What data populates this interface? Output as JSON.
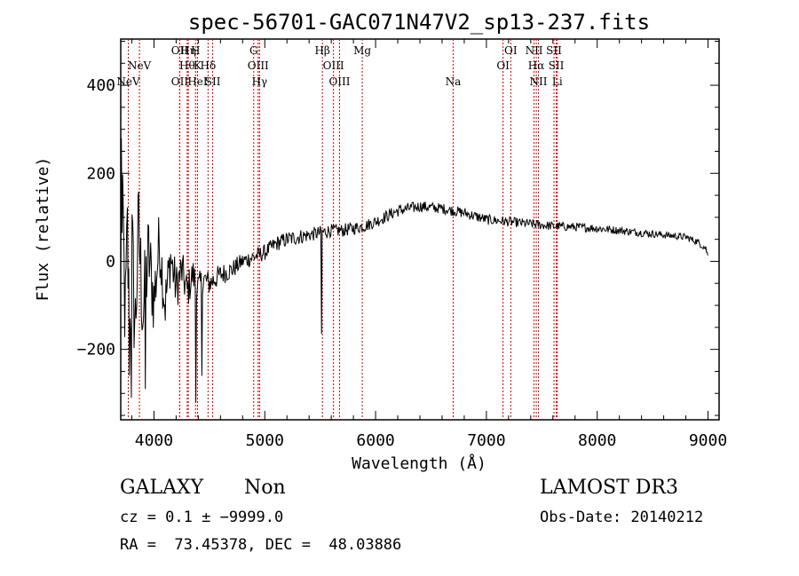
{
  "chart_data": {
    "type": "line",
    "title": "spec-56701-GAC071N47V2_sp13-237.fits",
    "xlabel": "Wavelength (Å)",
    "ylabel": "Flux (relative)",
    "xlim": [
      3700,
      9100
    ],
    "ylim": [
      -360,
      505
    ],
    "xticks": [
      4000,
      5000,
      6000,
      7000,
      8000,
      9000
    ],
    "yticks": [
      -200,
      0,
      200,
      400
    ],
    "xtick_labels": [
      "4000",
      "5000",
      "6000",
      "7000",
      "8000",
      "9000"
    ],
    "ytick_labels": [
      "−200",
      "0",
      "200",
      "400"
    ],
    "series": [
      {
        "name": "flux",
        "x": [
          3700,
          3720,
          3740,
          3760,
          3780,
          3800,
          3830,
          3860,
          3900,
          3950,
          4000,
          4050,
          4100,
          4150,
          4200,
          4250,
          4300,
          4350,
          4400,
          4450,
          4500,
          4600,
          4700,
          4800,
          4900,
          5000,
          5100,
          5200,
          5300,
          5400,
          5500,
          5600,
          5700,
          5800,
          5900,
          6000,
          6200,
          6400,
          6600,
          6800,
          7000,
          7200,
          7400,
          7600,
          7800,
          8000,
          8200,
          8400,
          8600,
          8800,
          8900,
          8980,
          9000
        ],
        "y": [
          -80,
          120,
          -150,
          60,
          -200,
          40,
          -160,
          80,
          -120,
          20,
          -90,
          50,
          -100,
          10,
          -60,
          -20,
          -70,
          -30,
          -60,
          -40,
          -50,
          -30,
          -20,
          0,
          10,
          20,
          40,
          50,
          55,
          60,
          65,
          70,
          70,
          75,
          80,
          90,
          115,
          125,
          120,
          110,
          95,
          90,
          85,
          80,
          78,
          75,
          70,
          65,
          60,
          55,
          45,
          30,
          10
        ],
        "noise": [
          80,
          100,
          120,
          130,
          140,
          140,
          130,
          120,
          110,
          100,
          90,
          80,
          70,
          60,
          55,
          50,
          45,
          40,
          35,
          30,
          28,
          25,
          22,
          20,
          20,
          18,
          18,
          18,
          18,
          16,
          16,
          15,
          15,
          15,
          14,
          14,
          14,
          13,
          12,
          12,
          12,
          11,
          11,
          10,
          10,
          10,
          9,
          9,
          8,
          8,
          8,
          8,
          8
        ],
        "spikes": [
          {
            "x": 3705,
            "y": 280
          },
          {
            "x": 3795,
            "y": -310
          },
          {
            "x": 3920,
            "y": -290
          },
          {
            "x": 4380,
            "y": -320
          },
          {
            "x": 4430,
            "y": -260
          },
          {
            "x": 5510,
            "y": -165
          }
        ]
      }
    ],
    "lines": [
      {
        "x": 3768,
        "label": "NeV",
        "row": 3
      },
      {
        "x": 3869,
        "label": "NeV",
        "row": 1
      },
      {
        "x": 4232,
        "label": "OII",
        "row": 0
      },
      {
        "x": 4232,
        "label": "OII",
        "row": 3
      },
      {
        "x": 4300,
        "label": "Hθ",
        "row": 1
      },
      {
        "x": 4310,
        "label": "Hη",
        "row": 0
      },
      {
        "x": 4375,
        "label": "H",
        "row": 0
      },
      {
        "x": 4393,
        "label": "K",
        "row": 1
      },
      {
        "x": 4393,
        "label": "HeI",
        "row": 3
      },
      {
        "x": 4488,
        "label": "Hδ",
        "row": 1
      },
      {
        "x": 4530,
        "label": "SII",
        "row": 3
      },
      {
        "x": 4900,
        "label": "G",
        "row": 0
      },
      {
        "x": 4940,
        "label": "OIII",
        "row": 1
      },
      {
        "x": 4953,
        "label": "Hγ",
        "row": 3
      },
      {
        "x": 5520,
        "label": "Hβ",
        "row": 0
      },
      {
        "x": 5620,
        "label": "OIII",
        "row": 1
      },
      {
        "x": 5675,
        "label": "OIII",
        "row": 3
      },
      {
        "x": 5880,
        "label": "Mg",
        "row": 0
      },
      {
        "x": 6700,
        "label": "Na",
        "row": 3
      },
      {
        "x": 7150,
        "label": "OI",
        "row": 1
      },
      {
        "x": 7220,
        "label": "OI",
        "row": 0
      },
      {
        "x": 7430,
        "label": "NII",
        "row": 0
      },
      {
        "x": 7450,
        "label": "Hα",
        "row": 1
      },
      {
        "x": 7470,
        "label": "NII",
        "row": 3
      },
      {
        "x": 7610,
        "label": "SII",
        "row": 0
      },
      {
        "x": 7630,
        "label": "SII",
        "row": 1
      },
      {
        "x": 7640,
        "label": "Li",
        "row": 3
      }
    ]
  },
  "info": {
    "class_label": "GALAXY",
    "subclass_label": "Non",
    "redshift_label": "cz = 0.1 ± −9999.0",
    "coords_label": "RA =  73.45378, DEC =  48.03886",
    "survey_label": "LAMOST DR3",
    "obs_date_label": "Obs-Date: 20140212"
  },
  "colors": {
    "spectrum": "#000000",
    "line_marker": "#cc0000",
    "axis": "#000000",
    "background": "#ffffff"
  }
}
